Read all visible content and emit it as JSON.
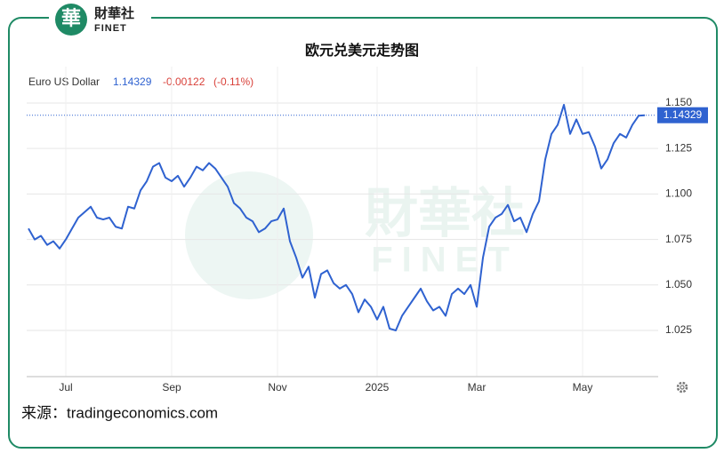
{
  "logo": {
    "glyph": "華",
    "name": "財華社",
    "brand": "FINET"
  },
  "chart_data": {
    "type": "line",
    "title": "欧元兑美元走势图",
    "series_label": "Euro US Dollar",
    "change": "-0.00122",
    "change_pct": "(-0.11%)",
    "source": "来源：tradingeconomics.com",
    "categories": [
      null,
      null,
      null,
      null,
      null,
      null,
      "Jul",
      null,
      null,
      null,
      null,
      null,
      null,
      null,
      null,
      null,
      null,
      null,
      null,
      null,
      null,
      null,
      null,
      "Sep",
      null,
      null,
      null,
      null,
      null,
      null,
      null,
      null,
      null,
      null,
      null,
      null,
      null,
      null,
      null,
      null,
      "Nov",
      null,
      null,
      null,
      null,
      null,
      null,
      null,
      null,
      null,
      null,
      null,
      null,
      null,
      null,
      null,
      "2025",
      null,
      null,
      null,
      null,
      null,
      null,
      null,
      null,
      null,
      null,
      null,
      null,
      null,
      null,
      null,
      "Mar",
      null,
      null,
      null,
      null,
      null,
      null,
      null,
      null,
      null,
      null,
      null,
      null,
      null,
      null,
      null,
      null,
      "May",
      null,
      null,
      null,
      null,
      null,
      null,
      null,
      null,
      null,
      null
    ],
    "series": [
      {
        "name": "Euro US Dollar",
        "color": "#2f62d0",
        "values": [
          1.081,
          1.075,
          1.077,
          1.072,
          1.074,
          1.07,
          1.075,
          1.081,
          1.087,
          1.09,
          1.093,
          1.087,
          1.086,
          1.087,
          1.082,
          1.081,
          1.093,
          1.092,
          1.102,
          1.107,
          1.115,
          1.117,
          1.109,
          1.107,
          1.11,
          1.104,
          1.109,
          1.115,
          1.113,
          1.117,
          1.114,
          1.109,
          1.104,
          1.095,
          1.092,
          1.087,
          1.085,
          1.079,
          1.081,
          1.085,
          1.086,
          1.092,
          1.074,
          1.065,
          1.054,
          1.06,
          1.043,
          1.056,
          1.058,
          1.051,
          1.048,
          1.05,
          1.045,
          1.035,
          1.042,
          1.038,
          1.031,
          1.038,
          1.026,
          1.025,
          1.033,
          1.038,
          1.043,
          1.048,
          1.041,
          1.036,
          1.038,
          1.033,
          1.045,
          1.048,
          1.045,
          1.05,
          1.038,
          1.065,
          1.082,
          1.087,
          1.089,
          1.094,
          1.085,
          1.087,
          1.079,
          1.089,
          1.096,
          1.119,
          1.133,
          1.138,
          1.149,
          1.133,
          1.141,
          1.133,
          1.134,
          1.126,
          1.114,
          1.119,
          1.128,
          1.133,
          1.131,
          1.138,
          1.143,
          1.14329
        ]
      }
    ],
    "ylim": [
      1.0,
      1.17
    ],
    "yticks": [
      1.025,
      {
        "value": 1.05,
        "label": "1.050"
      },
      1.075,
      {
        "value": 1.1,
        "label": "1.100"
      },
      1.125,
      {
        "value": 1.15,
        "label": "1.150"
      }
    ],
    "grid": true
  }
}
